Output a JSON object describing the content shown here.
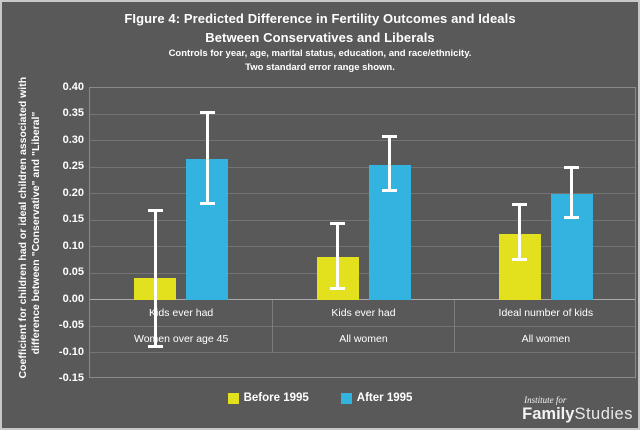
{
  "window": {
    "background": "#595959",
    "frame_border": "#c8c8c8"
  },
  "title": {
    "line1": "FIgure 4: Predicted Difference in Fertility Outcomes and Ideals",
    "line2": "Between Conservatives and Liberals"
  },
  "subtitle": {
    "line1": "Controls for year, age, marital status, education, and race/ethnicity.",
    "line2": "Two standard error range shown."
  },
  "y_axis": {
    "title_line1": "Coefficient for children had or ideal children associated with",
    "title_line2": "difference between \"Conservative\" and \"Liberal\""
  },
  "legend": {
    "items": [
      {
        "label": "Before 1995",
        "color": "#e3e11d"
      },
      {
        "label": "After 1995",
        "color": "#33b3e0"
      }
    ]
  },
  "logo": {
    "top": "Institute for",
    "bold": "Family",
    "light": "Studies"
  },
  "colors": {
    "background": "#595959",
    "gridline": "#737373",
    "zero_line": "#a9a9a9",
    "plot_border": "#8a8a8a",
    "separator": "#7d7d7d",
    "text": "#ffffff",
    "error_bar": "#ffffff",
    "before_1995": "#e3e11d",
    "after_1995": "#33b3e0"
  },
  "chart_data": {
    "type": "bar",
    "title": "FIgure 4: Predicted Difference in Fertility Outcomes and Ideals Between Conservatives and Liberals",
    "subtitle": "Controls for year, age, marital status, education, and race/ethnicity. Two standard error range shown.",
    "categories": [
      {
        "measure": "Kids ever had",
        "population": "Women over age 45"
      },
      {
        "measure": "Kids ever had",
        "population": "All women"
      },
      {
        "measure": "Ideal number of kids",
        "population": "All women"
      }
    ],
    "series": [
      {
        "name": "Before 1995",
        "color": "#e3e11d",
        "values": [
          0.04,
          0.08,
          0.125
        ],
        "error_low": [
          -0.09,
          0.02,
          0.075
        ],
        "error_high": [
          0.17,
          0.145,
          0.18
        ]
      },
      {
        "name": "After 1995",
        "color": "#33b3e0",
        "values": [
          0.265,
          0.255,
          0.2
        ],
        "error_low": [
          0.18,
          0.205,
          0.155
        ],
        "error_high": [
          0.355,
          0.31,
          0.25
        ]
      }
    ],
    "ylabel": "Coefficient for children had or ideal children associated with difference between \"Conservative\" and \"Liberal\"",
    "xlabel": "",
    "ylim": [
      -0.15,
      0.4
    ],
    "yticks": [
      0.4,
      0.35,
      0.3,
      0.25,
      0.2,
      0.15,
      0.1,
      0.05,
      0.0,
      -0.05,
      -0.1,
      -0.15
    ],
    "grid": true,
    "legend_position": "bottom",
    "error_note": "Two standard error range shown."
  }
}
